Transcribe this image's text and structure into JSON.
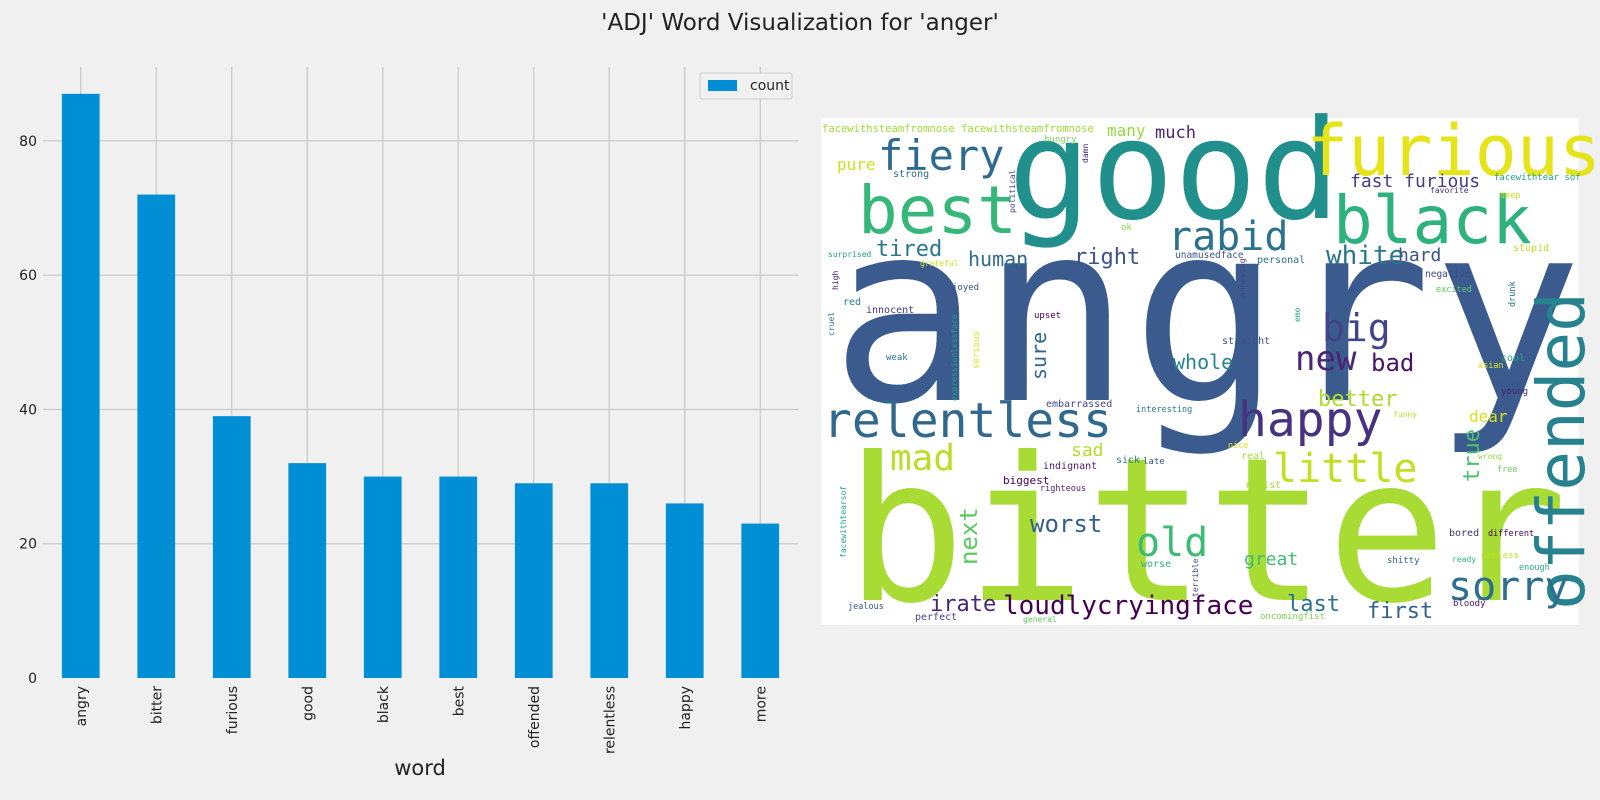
{
  "figure": {
    "title": "'ADJ' Word Visualization for 'anger'",
    "background": "#f0f0f0"
  },
  "chart_data": [
    {
      "type": "bar",
      "categories": [
        "angry",
        "bitter",
        "furious",
        "good",
        "black",
        "best",
        "offended",
        "relentless",
        "happy",
        "more"
      ],
      "series": [
        {
          "name": "count",
          "values": [
            87,
            72,
            39,
            32,
            30,
            30,
            29,
            29,
            26,
            23
          ],
          "color": "#008fd5"
        }
      ],
      "xlabel": "word",
      "ylabel": "",
      "ylim": [
        0,
        91
      ],
      "yticks": [
        0,
        20,
        40,
        60,
        80
      ],
      "grid": true,
      "legend_position": "top-right"
    },
    {
      "type": "wordcloud",
      "background": "#ffffff",
      "words": [
        {
          "text": "angry",
          "weight": 87,
          "color": "#3b5b8f"
        },
        {
          "text": "bitter",
          "weight": 72,
          "color": "#a8db34"
        },
        {
          "text": "good",
          "weight": 32,
          "color": "#21908d"
        },
        {
          "text": "furious",
          "weight": 39,
          "color": "#e5e419"
        },
        {
          "text": "black",
          "weight": 30,
          "color": "#2db27d"
        },
        {
          "text": "best",
          "weight": 30,
          "color": "#35b779"
        },
        {
          "text": "offended",
          "weight": 29,
          "color": "#26828e"
        },
        {
          "text": "relentless",
          "weight": 29,
          "color": "#31688e"
        },
        {
          "text": "happy",
          "weight": 26,
          "color": "#46337f"
        },
        {
          "text": "sorry",
          "color": "#2e6e8e"
        },
        {
          "text": "fiery",
          "color": "#2f6b8e"
        },
        {
          "text": "rabid",
          "color": "#2c728e"
        },
        {
          "text": "little",
          "color": "#c2df23"
        },
        {
          "text": "old",
          "color": "#3dbc74"
        },
        {
          "text": "mad",
          "color": "#bade28"
        },
        {
          "text": "new",
          "color": "#482576"
        },
        {
          "text": "big",
          "color": "#414487"
        },
        {
          "text": "white",
          "color": "#2a788e"
        },
        {
          "text": "tired",
          "color": "#2a788e"
        },
        {
          "text": "human",
          "color": "#31688e"
        },
        {
          "text": "right",
          "color": "#3b528b"
        },
        {
          "text": "loudlycryingface",
          "color": "#440154"
        },
        {
          "text": "bad",
          "color": "#481467"
        },
        {
          "text": "whole",
          "color": "#25848e"
        },
        {
          "text": "worst",
          "color": "#355f8d"
        },
        {
          "text": "irate",
          "color": "#482677"
        },
        {
          "text": "next",
          "color": "#5ec962"
        },
        {
          "text": "sure",
          "color": "#31688e"
        },
        {
          "text": "better",
          "color": "#addc30"
        },
        {
          "text": "true",
          "color": "#4ac16d"
        },
        {
          "text": "hard",
          "color": "#3b528b"
        },
        {
          "text": "fast furious",
          "color": "#433e85"
        },
        {
          "text": "first",
          "color": "#33638d"
        },
        {
          "text": "last",
          "color": "#2c728e"
        },
        {
          "text": "great",
          "color": "#3fbc73"
        },
        {
          "text": "sad",
          "color": "#b5de2b"
        },
        {
          "text": "dear",
          "color": "#d8e219"
        },
        {
          "text": "pure",
          "color": "#d0e11c"
        },
        {
          "text": "many",
          "color": "#93d741"
        },
        {
          "text": "much",
          "color": "#482677"
        },
        {
          "text": "facewithsteamfromnose facewithsteamfromnose",
          "color": "#a0da39"
        },
        {
          "text": "hungry",
          "color": "#7ad151"
        },
        {
          "text": "strong",
          "color": "#2d708e"
        },
        {
          "text": "damn",
          "color": "#482173"
        },
        {
          "text": "political",
          "color": "#3e4989"
        },
        {
          "text": "ok",
          "color": "#86d549"
        },
        {
          "text": "unamusedface",
          "color": "#39568c"
        },
        {
          "text": "personal",
          "color": "#2e6f8e"
        },
        {
          "text": "annoying",
          "color": "#424086"
        },
        {
          "text": "surprised",
          "color": "#20a386"
        },
        {
          "text": "grateful",
          "color": "#c8e020"
        },
        {
          "text": "joyed",
          "color": "#3b528b"
        },
        {
          "text": "high",
          "color": "#481a6c"
        },
        {
          "text": "red",
          "color": "#2a788e"
        },
        {
          "text": "innocent",
          "color": "#443983"
        },
        {
          "text": "upset",
          "color": "#440154"
        },
        {
          "text": "emo",
          "color": "#20a486"
        },
        {
          "text": "cruel",
          "color": "#2d708e"
        },
        {
          "text": "expressionlessface",
          "color": "#1f9e89"
        },
        {
          "text": "serious",
          "color": "#dde318"
        },
        {
          "text": "straight",
          "color": "#3b528b"
        },
        {
          "text": "weak",
          "color": "#2c728e"
        },
        {
          "text": "embarrassed",
          "color": "#3e4989"
        },
        {
          "text": "interesting",
          "color": "#2a788e"
        },
        {
          "text": "funny",
          "color": "#bddf26"
        },
        {
          "text": "nice",
          "color": "#dde318"
        },
        {
          "text": "real",
          "color": "#a5db36"
        },
        {
          "text": "indignant",
          "color": "#481f70"
        },
        {
          "text": "sick",
          "color": "#2a788e"
        },
        {
          "text": "late",
          "color": "#3a548c"
        },
        {
          "text": "biggest",
          "color": "#440154"
        },
        {
          "text": "righteous",
          "color": "#482878"
        },
        {
          "text": "racist",
          "color": "#a8db34"
        },
        {
          "text": "facewithtearsof",
          "color": "#22a884"
        },
        {
          "text": "worse",
          "color": "#2fb47c"
        },
        {
          "text": "terrible",
          "color": "#3e4989"
        },
        {
          "text": "jealous",
          "color": "#3b528b"
        },
        {
          "text": "perfect",
          "color": "#414487"
        },
        {
          "text": "general",
          "color": "#5ec962"
        },
        {
          "text": "oncomingfist",
          "color": "#7ad151"
        },
        {
          "text": "bloody",
          "color": "#481467"
        },
        {
          "text": "shitty",
          "color": "#32648e"
        },
        {
          "text": "ready",
          "color": "#2fb47c"
        },
        {
          "text": "useless",
          "color": "#c2df23"
        },
        {
          "text": "enough",
          "color": "#29af7f"
        },
        {
          "text": "bored",
          "color": "#46327e"
        },
        {
          "text": "different",
          "color": "#440154"
        },
        {
          "text": "wrong",
          "color": "#95d840"
        },
        {
          "text": "free",
          "color": "#70cf57"
        },
        {
          "text": "young",
          "color": "#481f70"
        },
        {
          "text": "poor",
          "color": "#3b528b"
        },
        {
          "text": "cool",
          "color": "#22a884"
        },
        {
          "text": "asian",
          "color": "#dde318"
        },
        {
          "text": "drunk",
          "color": "#2c728e"
        },
        {
          "text": "excited",
          "color": "#5ec962"
        },
        {
          "text": "negative",
          "color": "#414487"
        },
        {
          "text": "stupid",
          "color": "#bddf26"
        },
        {
          "text": "deep",
          "color": "#c8e020"
        },
        {
          "text": "favorite",
          "color": "#472c7a"
        },
        {
          "text": "facewithtear sof",
          "color": "#20a386"
        }
      ]
    }
  ]
}
